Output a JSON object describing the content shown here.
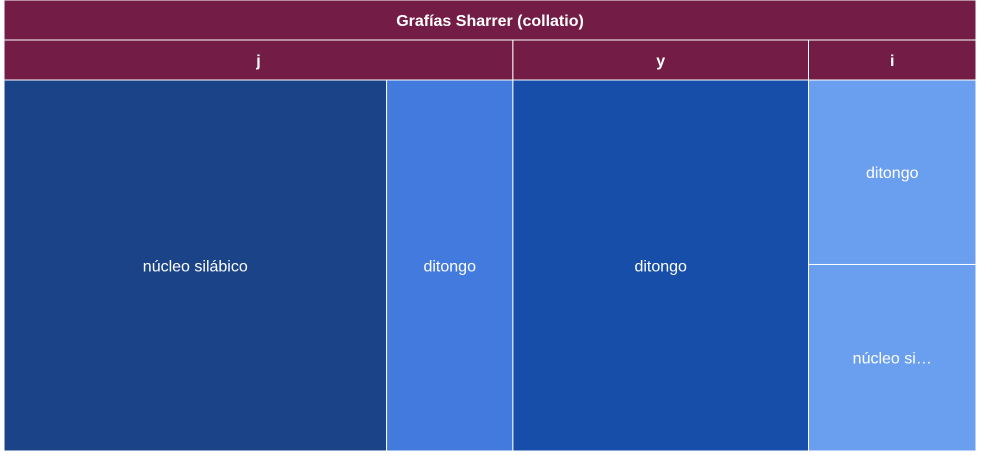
{
  "chart_data": {
    "type": "treemap",
    "title": "Grafías Sharrer (collatio)",
    "colors": {
      "header": "#721c46",
      "border": "#ffffff",
      "text": "#ffffff"
    },
    "groups": [
      {
        "name": "j",
        "children": [
          {
            "name": "núcleo silábico",
            "value": 418,
            "color": "#1b4488"
          },
          {
            "name": "ditongo",
            "value": 138,
            "color": "#427ade"
          }
        ]
      },
      {
        "name": "y",
        "children": [
          {
            "name": "ditongo",
            "value": 323,
            "color": "#164eaa"
          }
        ]
      },
      {
        "name": "i",
        "children": [
          {
            "name": "ditongo",
            "value": 91,
            "color": "#6a9ff0"
          },
          {
            "name": "núcleo si…",
            "value": 92,
            "color": "#6a9ff0"
          }
        ]
      }
    ]
  }
}
